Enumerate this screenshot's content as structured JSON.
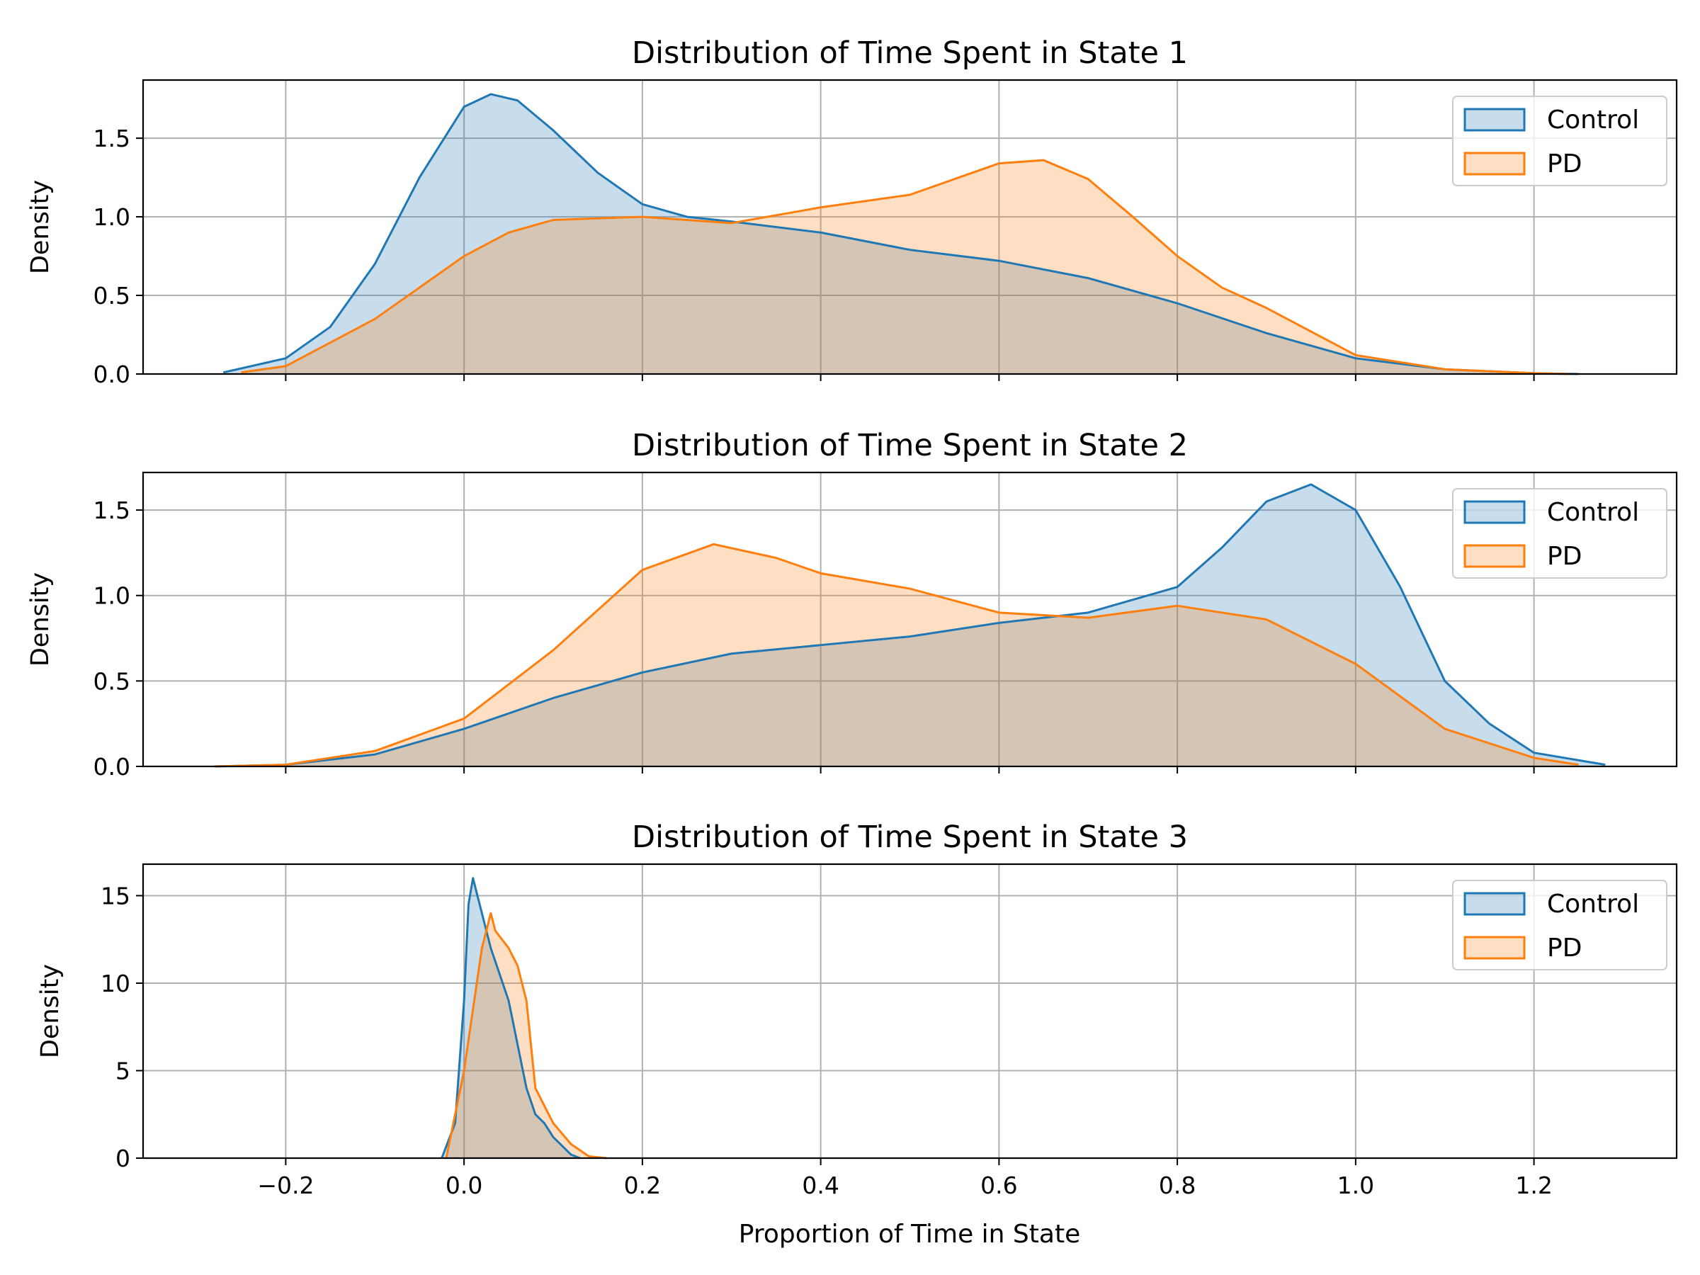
{
  "figure": {
    "xlabel": "Proportion of Time in State"
  },
  "chart_data": [
    {
      "type": "area",
      "title": "Distribution of Time Spent in State 1",
      "ylabel": "Density",
      "xlim": [
        -0.36,
        1.36
      ],
      "ylim": [
        0,
        1.87
      ],
      "xticks": [
        -0.2,
        0.0,
        0.2,
        0.4,
        0.6,
        0.8,
        1.0,
        1.2
      ],
      "xtick_labels": [
        "−0.2",
        "0.0",
        "0.2",
        "0.4",
        "0.6",
        "0.8",
        "1.0",
        "1.2"
      ],
      "yticks": [
        0.0,
        0.5,
        1.0,
        1.5
      ],
      "ytick_labels": [
        "0.0",
        "0.5",
        "1.0",
        "1.5"
      ],
      "grid": true,
      "legend": {
        "position": "top-right",
        "entries": [
          "Control",
          "PD"
        ]
      },
      "series": [
        {
          "name": "Control",
          "color": "#1f77b4",
          "fill": "#c6dbec",
          "x": [
            -0.27,
            -0.2,
            -0.15,
            -0.1,
            -0.05,
            0.0,
            0.03,
            0.06,
            0.1,
            0.15,
            0.2,
            0.25,
            0.3,
            0.4,
            0.5,
            0.6,
            0.7,
            0.8,
            0.9,
            1.0,
            1.1,
            1.2,
            1.25
          ],
          "y": [
            0.01,
            0.1,
            0.3,
            0.7,
            1.25,
            1.7,
            1.78,
            1.74,
            1.55,
            1.28,
            1.08,
            1.0,
            0.97,
            0.9,
            0.79,
            0.72,
            0.61,
            0.45,
            0.26,
            0.1,
            0.03,
            0.005,
            0.0
          ]
        },
        {
          "name": "PD",
          "color": "#ff7f0e",
          "fill": "#ffd8b4",
          "x": [
            -0.25,
            -0.2,
            -0.1,
            0.0,
            0.05,
            0.1,
            0.2,
            0.3,
            0.4,
            0.5,
            0.55,
            0.6,
            0.65,
            0.7,
            0.75,
            0.8,
            0.85,
            0.9,
            1.0,
            1.1,
            1.2,
            1.24
          ],
          "y": [
            0.01,
            0.05,
            0.35,
            0.75,
            0.9,
            0.98,
            1.0,
            0.96,
            1.06,
            1.14,
            1.24,
            1.34,
            1.36,
            1.24,
            1.0,
            0.75,
            0.55,
            0.42,
            0.12,
            0.03,
            0.005,
            0.0
          ]
        }
      ]
    },
    {
      "type": "area",
      "title": "Distribution of Time Spent in State 2",
      "ylabel": "Density",
      "xlim": [
        -0.36,
        1.36
      ],
      "ylim": [
        0,
        1.72
      ],
      "xticks": [
        -0.2,
        0.0,
        0.2,
        0.4,
        0.6,
        0.8,
        1.0,
        1.2
      ],
      "xtick_labels": [
        "−0.2",
        "0.0",
        "0.2",
        "0.4",
        "0.6",
        "0.8",
        "1.0",
        "1.2"
      ],
      "yticks": [
        0.0,
        0.5,
        1.0,
        1.5
      ],
      "ytick_labels": [
        "0.0",
        "0.5",
        "1.0",
        "1.5"
      ],
      "grid": true,
      "legend": {
        "position": "top-right",
        "entries": [
          "Control",
          "PD"
        ]
      },
      "series": [
        {
          "name": "Control",
          "color": "#1f77b4",
          "fill": "#c6dbec",
          "x": [
            -0.28,
            -0.2,
            -0.1,
            0.0,
            0.1,
            0.2,
            0.3,
            0.4,
            0.5,
            0.6,
            0.7,
            0.8,
            0.85,
            0.9,
            0.95,
            1.0,
            1.05,
            1.1,
            1.15,
            1.2,
            1.28
          ],
          "y": [
            0.0,
            0.01,
            0.07,
            0.22,
            0.4,
            0.55,
            0.66,
            0.71,
            0.76,
            0.84,
            0.9,
            1.05,
            1.28,
            1.55,
            1.65,
            1.5,
            1.05,
            0.5,
            0.25,
            0.08,
            0.01
          ]
        },
        {
          "name": "PD",
          "color": "#ff7f0e",
          "fill": "#ffd8b4",
          "x": [
            -0.28,
            -0.2,
            -0.1,
            0.0,
            0.1,
            0.2,
            0.28,
            0.35,
            0.4,
            0.5,
            0.6,
            0.7,
            0.8,
            0.9,
            1.0,
            1.1,
            1.2,
            1.25
          ],
          "y": [
            0.0,
            0.01,
            0.09,
            0.28,
            0.68,
            1.15,
            1.3,
            1.22,
            1.13,
            1.04,
            0.9,
            0.87,
            0.94,
            0.86,
            0.6,
            0.22,
            0.05,
            0.01
          ]
        }
      ]
    },
    {
      "type": "area",
      "title": "Distribution of Time Spent in State 3",
      "ylabel": "Density",
      "xlim": [
        -0.36,
        1.36
      ],
      "ylim": [
        0,
        16.8
      ],
      "xticks": [
        -0.2,
        0.0,
        0.2,
        0.4,
        0.6,
        0.8,
        1.0,
        1.2
      ],
      "xtick_labels": [
        "−0.2",
        "0.0",
        "0.2",
        "0.4",
        "0.6",
        "0.8",
        "1.0",
        "1.2"
      ],
      "yticks": [
        0,
        5,
        10,
        15
      ],
      "ytick_labels": [
        "0",
        "5",
        "10",
        "15"
      ],
      "grid": true,
      "legend": {
        "position": "top-right",
        "entries": [
          "Control",
          "PD"
        ]
      },
      "series": [
        {
          "name": "Control",
          "color": "#1f77b4",
          "fill": "#c6dbec",
          "x": [
            -0.025,
            -0.01,
            0.0,
            0.005,
            0.01,
            0.02,
            0.03,
            0.04,
            0.05,
            0.06,
            0.07,
            0.08,
            0.09,
            0.1,
            0.12,
            0.13
          ],
          "y": [
            0.0,
            2.0,
            9.0,
            14.5,
            16.0,
            14.0,
            12.0,
            10.5,
            9.0,
            6.5,
            4.0,
            2.5,
            2.0,
            1.2,
            0.2,
            0.0
          ]
        },
        {
          "name": "PD",
          "color": "#ff7f0e",
          "fill": "#ffd8b4",
          "x": [
            -0.02,
            0.0,
            0.02,
            0.03,
            0.035,
            0.05,
            0.06,
            0.07,
            0.08,
            0.09,
            0.1,
            0.12,
            0.14,
            0.16
          ],
          "y": [
            0.0,
            5.0,
            12.0,
            14.0,
            13.0,
            12.0,
            11.0,
            9.0,
            4.0,
            3.0,
            2.0,
            0.8,
            0.1,
            0.0
          ]
        }
      ]
    }
  ]
}
